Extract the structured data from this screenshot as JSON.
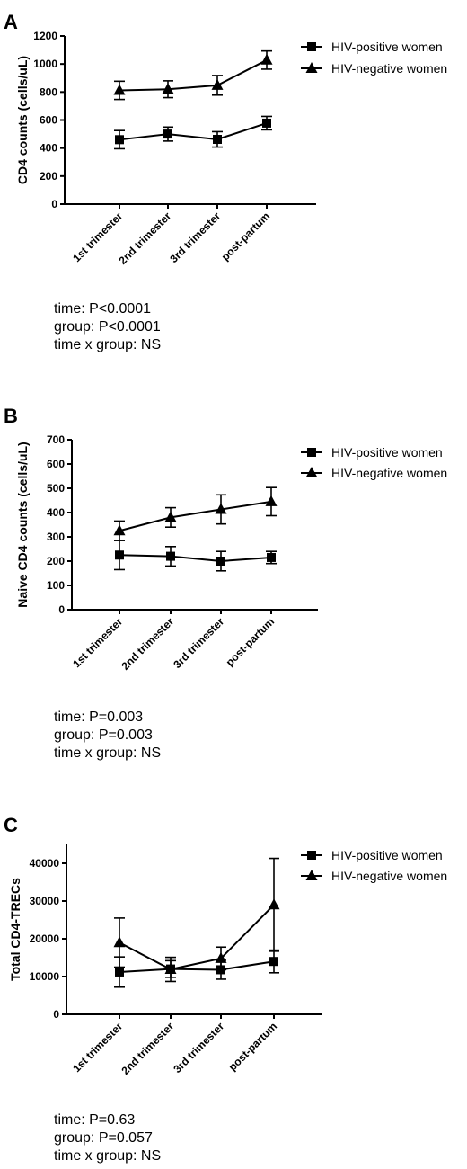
{
  "chart_data": [
    {
      "type": "line",
      "panel": "A",
      "ylabel": "CD4 counts (cells/uL)",
      "xlabel": "",
      "categories": [
        "1st trimester",
        "2nd trimester",
        "3rd trimester",
        "post-partum"
      ],
      "ylim": [
        0,
        1200
      ],
      "yticks": [
        0,
        200,
        400,
        600,
        800,
        1000,
        1200
      ],
      "series": [
        {
          "name": "HIV-positive women",
          "marker": "square",
          "values": [
            460,
            500,
            462,
            578
          ],
          "errors": [
            65,
            50,
            55,
            48
          ]
        },
        {
          "name": "HIV-negative women",
          "marker": "triangle",
          "values": [
            812,
            820,
            848,
            1028
          ],
          "errors": [
            65,
            60,
            70,
            65
          ]
        }
      ],
      "legend": "top-right",
      "stats": [
        "time: P<0.0001",
        "group: P<0.0001",
        "time x group: NS"
      ]
    },
    {
      "type": "line",
      "panel": "B",
      "ylabel": "Naive CD4 counts (cells/uL)",
      "xlabel": "",
      "categories": [
        "1st trimester",
        "2nd trimester",
        "3rd trimester",
        "post-partum"
      ],
      "ylim": [
        0,
        700
      ],
      "yticks": [
        0,
        100,
        200,
        300,
        400,
        500,
        600,
        700
      ],
      "series": [
        {
          "name": "HIV-positive women",
          "marker": "square",
          "values": [
            225,
            220,
            200,
            215
          ],
          "errors": [
            60,
            40,
            40,
            25
          ]
        },
        {
          "name": "HIV-negative women",
          "marker": "triangle",
          "values": [
            325,
            380,
            413,
            445
          ],
          "errors": [
            40,
            40,
            60,
            58
          ]
        }
      ],
      "legend": "top-right",
      "stats": [
        "time: P=0.003",
        "group: P=0.003",
        "time x group: NS"
      ]
    },
    {
      "type": "line",
      "panel": "C",
      "ylabel": "Total CD4-TRECs",
      "xlabel": "",
      "categories": [
        "1st trimester",
        "2nd trimester",
        "3rd trimester",
        "post-partum"
      ],
      "ylim": [
        0,
        45000
      ],
      "yticks": [
        0,
        10000,
        20000,
        30000,
        40000
      ],
      "series": [
        {
          "name": "HIV-positive women",
          "marker": "square",
          "values": [
            11200,
            12000,
            11800,
            14000
          ],
          "errors": [
            4000,
            2200,
            2500,
            3000
          ]
        },
        {
          "name": "HIV-negative women",
          "marker": "triangle",
          "values": [
            19000,
            11900,
            14800,
            29000
          ],
          "errors": [
            6500,
            3200,
            3000,
            12300
          ]
        }
      ],
      "legend": "top-right",
      "stats": [
        "time: P=0.63",
        "group: P=0.057",
        "time x group: NS"
      ]
    }
  ]
}
